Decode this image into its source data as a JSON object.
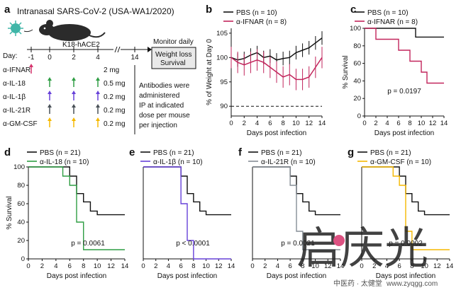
{
  "figure": {
    "panel_a": {
      "letter": "a",
      "title": "Intranasal SARS-CoV-2 (USA-WA1/2020)",
      "mouse_label": "K18-hACE2",
      "day_label": "Day:",
      "days": [
        "-1",
        "0",
        "2",
        "4",
        "14"
      ],
      "monitor": {
        "line1": "Monitor daily",
        "line2": "Weight loss",
        "line3": "Survival"
      },
      "antibodies": [
        {
          "name": "α-IFNAR",
          "dose": "2 mg",
          "color": "#d6336c",
          "days": [
            -1
          ]
        },
        {
          "name": "α-IL-18",
          "dose": "0.5 mg",
          "color": "#2f9e44",
          "days": [
            0,
            2,
            4
          ]
        },
        {
          "name": "α-IL-1β",
          "dose": "0.2 mg",
          "color": "#6741d9",
          "days": [
            0,
            2,
            4
          ]
        },
        {
          "name": "α-IL-21R",
          "dose": "0.2 mg",
          "color": "#495057",
          "days": [
            0,
            2,
            4
          ]
        },
        {
          "name": "α-GM-CSF",
          "dose": "0.2 mg",
          "color": "#f5b800",
          "days": [
            0,
            2,
            4
          ]
        }
      ],
      "note_lines": [
        "Antibodies were",
        "administered",
        "IP at indicated",
        "dose per mouse",
        "per injection"
      ]
    },
    "watermark": {
      "text": "启庆光",
      "sub": "中医药 · 太健堂",
      "url": "www.zyqgg.com"
    }
  },
  "chart_data": [
    {
      "id": "b",
      "letter": "b",
      "type": "line",
      "xlabel": "Days post infection",
      "ylabel": "% of Weight at Day 0",
      "xlim": [
        0,
        14
      ],
      "ylim": [
        88,
        106
      ],
      "xticks": [
        0,
        2,
        4,
        6,
        8,
        10,
        12,
        14
      ],
      "yticks": [
        90,
        95,
        100,
        105
      ],
      "reference_line": 90,
      "series": [
        {
          "name": "PBS (n = 10)",
          "color": "#111111",
          "x": [
            0,
            1,
            2,
            3,
            4,
            5,
            6,
            7,
            8,
            9,
            10,
            11,
            12,
            13,
            14
          ],
          "y": [
            100,
            99.5,
            99.8,
            100.5,
            101,
            100,
            100.3,
            99.5,
            99.8,
            100,
            101,
            101.5,
            102,
            103,
            104
          ]
        },
        {
          "name": "α-IFNAR (n = 8)",
          "color": "#c2255c",
          "x": [
            0,
            1,
            2,
            3,
            4,
            5,
            6,
            7,
            8,
            9,
            10,
            11,
            12,
            13,
            14
          ],
          "y": [
            100,
            99,
            98.5,
            99,
            99.5,
            99,
            98,
            97,
            96,
            96.5,
            95.5,
            95.5,
            96,
            98,
            100
          ]
        }
      ]
    },
    {
      "id": "c",
      "letter": "c",
      "type": "line",
      "xlabel": "Days post infection",
      "ylabel": "% Survival",
      "xlim": [
        0,
        14
      ],
      "ylim": [
        0,
        100
      ],
      "xticks": [
        0,
        2,
        4,
        6,
        8,
        10,
        12,
        14
      ],
      "yticks": [
        0,
        20,
        40,
        60,
        80,
        100
      ],
      "annotation": "p = 0.0197",
      "series": [
        {
          "name": "PBS (n = 10)",
          "color": "#111111",
          "step_x": [
            0,
            9,
            14
          ],
          "step_y": [
            100,
            90,
            90
          ]
        },
        {
          "name": "α-IFNAR (n = 8)",
          "color": "#c2255c",
          "step_x": [
            0,
            2,
            6,
            8,
            10,
            11,
            12,
            14
          ],
          "step_y": [
            100,
            87.5,
            75,
            62.5,
            50,
            37.5,
            37.5,
            37.5
          ]
        }
      ]
    },
    {
      "id": "d",
      "letter": "d",
      "type": "line",
      "xlabel": "Days post infection",
      "ylabel": "% Survival",
      "xlim": [
        0,
        14
      ],
      "ylim": [
        0,
        100
      ],
      "xticks": [
        0,
        2,
        4,
        6,
        8,
        10,
        12,
        14
      ],
      "yticks": [
        0,
        20,
        40,
        60,
        80,
        100
      ],
      "annotation": "p = 0.0061",
      "series": [
        {
          "name": "PBS (n = 21)",
          "color": "#111111",
          "step_x": [
            0,
            6,
            7,
            8,
            9,
            10,
            14
          ],
          "step_y": [
            100,
            90,
            71,
            62,
            52,
            48,
            48
          ]
        },
        {
          "name": "α-IL-18 (n = 10)",
          "color": "#2f9e44",
          "step_x": [
            0,
            5,
            6,
            7,
            8,
            14
          ],
          "step_y": [
            100,
            90,
            80,
            40,
            10,
            10
          ]
        }
      ]
    },
    {
      "id": "e",
      "letter": "e",
      "type": "line",
      "xlabel": "Days post infection",
      "ylabel": "",
      "xlim": [
        0,
        14
      ],
      "ylim": [
        0,
        100
      ],
      "xticks": [
        0,
        2,
        4,
        6,
        8,
        10,
        12,
        14
      ],
      "yticks": [],
      "annotation": "p < 0.0001",
      "series": [
        {
          "name": "PBS (n = 21)",
          "color": "#111111",
          "step_x": [
            0,
            6,
            7,
            8,
            9,
            10,
            14
          ],
          "step_y": [
            100,
            90,
            71,
            62,
            52,
            48,
            48
          ]
        },
        {
          "name": "α-IL-1β (n = 10)",
          "color": "#6741d9",
          "step_x": [
            0,
            6,
            7,
            8,
            14
          ],
          "step_y": [
            100,
            60,
            20,
            0,
            0
          ]
        }
      ]
    },
    {
      "id": "f",
      "letter": "f",
      "type": "line",
      "xlabel": "Days post infection",
      "ylabel": "",
      "xlim": [
        0,
        14
      ],
      "ylim": [
        0,
        100
      ],
      "xticks": [
        0,
        2,
        4,
        6,
        8,
        10,
        12,
        14
      ],
      "yticks": [],
      "annotation": "p = 0.0021",
      "series": [
        {
          "name": "PBS (n = 21)",
          "color": "#111111",
          "step_x": [
            0,
            6,
            7,
            8,
            9,
            10,
            14
          ],
          "step_y": [
            100,
            90,
            71,
            62,
            52,
            48,
            48
          ]
        },
        {
          "name": "α-IL-21R (n = 10)",
          "color": "#868e96",
          "step_x": [
            0,
            6,
            7,
            8,
            14
          ],
          "step_y": [
            100,
            80,
            30,
            10,
            10
          ]
        }
      ]
    },
    {
      "id": "g",
      "letter": "g",
      "type": "line",
      "xlabel": "Days post infection",
      "ylabel": "",
      "xlim": [
        0,
        14
      ],
      "ylim": [
        0,
        100
      ],
      "xticks": [
        0,
        2,
        4,
        6,
        8,
        10,
        12,
        14
      ],
      "yticks": [],
      "annotation": "p = 0.0002",
      "series": [
        {
          "name": "PBS (n = 21)",
          "color": "#111111",
          "step_x": [
            0,
            6,
            7,
            8,
            9,
            10,
            14
          ],
          "step_y": [
            100,
            90,
            71,
            62,
            52,
            48,
            48
          ]
        },
        {
          "name": "α-GM-CSF (n = 10)",
          "color": "#f5b800",
          "step_x": [
            0,
            5,
            6,
            7,
            8,
            14
          ],
          "step_y": [
            100,
            90,
            80,
            30,
            10,
            10
          ]
        }
      ]
    }
  ]
}
